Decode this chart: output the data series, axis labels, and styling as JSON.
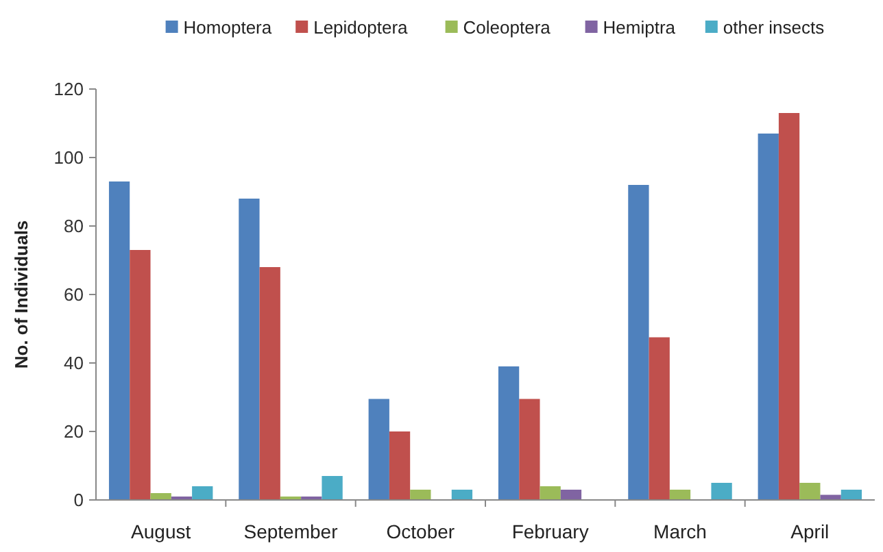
{
  "chart_data": {
    "type": "bar",
    "ylabel": "No. of Individuals",
    "categories": [
      "August",
      "September",
      "October",
      "February",
      "March",
      "April"
    ],
    "series": [
      {
        "name": "Homoptera",
        "color": "#4f81bd",
        "values": [
          93,
          88,
          29.5,
          39,
          92,
          107
        ]
      },
      {
        "name": "Lepidoptera",
        "color": "#c0504d",
        "values": [
          73,
          68,
          20,
          29.5,
          47.5,
          113
        ]
      },
      {
        "name": "Coleoptera",
        "color": "#9bbb59",
        "values": [
          2,
          1,
          3,
          4,
          3,
          5
        ]
      },
      {
        "name": "Hemiptra",
        "color": "#8064a2",
        "values": [
          1,
          1,
          0,
          3,
          0,
          1.5
        ]
      },
      {
        "name": "other insects",
        "color": "#4bacc6",
        "values": [
          4,
          7,
          3,
          0,
          5,
          3
        ]
      }
    ],
    "ylim": [
      0,
      120
    ],
    "yticks": [
      0,
      20,
      40,
      60,
      80,
      100,
      120
    ],
    "grid": false,
    "legend": "top"
  }
}
